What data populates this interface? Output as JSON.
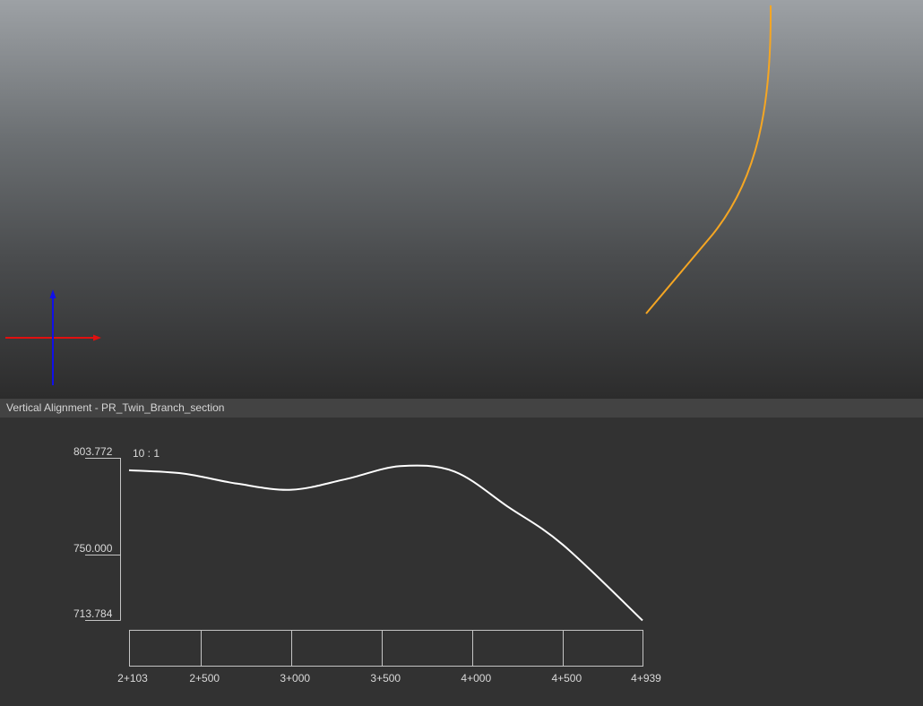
{
  "viewport": {
    "alignment_color": "#f5a623",
    "axis_colors": {
      "x": "#e01010",
      "y": "#1010e8"
    }
  },
  "panel": {
    "title": "Vertical Alignment - PR_Twin_Branch_section"
  },
  "profile": {
    "scale_label": "10 : 1",
    "elevation_labels": [
      "803.772",
      "750.000",
      "713.784"
    ],
    "station_labels": [
      "2+103",
      "2+500",
      "3+000",
      "3+500",
      "4+000",
      "4+500",
      "4+939"
    ],
    "line_color": "#ffffff"
  },
  "chart_data": {
    "type": "line",
    "title": "",
    "xlabel": "",
    "ylabel": "",
    "x_ticks": [
      "2+103",
      "2+500",
      "3+000",
      "3+500",
      "4+000",
      "4+500",
      "4+939"
    ],
    "x_range": [
      2103,
      4939
    ],
    "y_ticks": [
      713.784,
      750.0,
      803.772
    ],
    "y_range": [
      713.784,
      803.772
    ],
    "series": [
      {
        "values": [
          {
            "x": 2103,
            "y": 797.1
          },
          {
            "x": 2400,
            "y": 795.3
          },
          {
            "x": 2700,
            "y": 789.7
          },
          {
            "x": 3000,
            "y": 786.3
          },
          {
            "x": 3300,
            "y": 792.2
          },
          {
            "x": 3600,
            "y": 799.4
          },
          {
            "x": 3900,
            "y": 796.4
          },
          {
            "x": 4200,
            "y": 776.6
          },
          {
            "x": 4500,
            "y": 755.7
          },
          {
            "x": 4939,
            "y": 713.8
          }
        ]
      }
    ]
  }
}
